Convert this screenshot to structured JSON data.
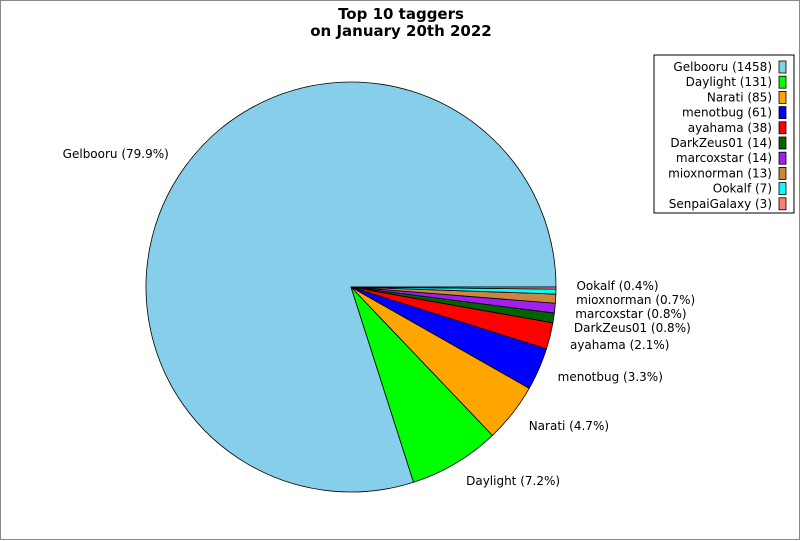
{
  "chart_data": {
    "type": "pie",
    "title": [
      "Top 10 taggers",
      "on January 20th 2022"
    ],
    "start_angle_deg": 0,
    "direction": "counterclockwise",
    "legend_position": "top-right",
    "slices": [
      {
        "name": "Gelbooru",
        "value": 1458,
        "legend": "Gelbooru (1458)",
        "label": "Gelbooru (79.9%)",
        "color": "#87CEEB"
      },
      {
        "name": "Daylight",
        "value": 131,
        "legend": "Daylight (131)",
        "label": "Daylight (7.2%)",
        "color": "#00FF00"
      },
      {
        "name": "Narati",
        "value": 85,
        "legend": "Narati (85)",
        "label": "Narati (4.7%)",
        "color": "#FFA500"
      },
      {
        "name": "menotbug",
        "value": 61,
        "legend": "menotbug (61)",
        "label": "menotbug (3.3%)",
        "color": "#0000FF"
      },
      {
        "name": "ayahama",
        "value": 38,
        "legend": "ayahama (38)",
        "label": "ayahama (2.1%)",
        "color": "#FF0000"
      },
      {
        "name": "DarkZeus01",
        "value": 14,
        "legend": "DarkZeus01 (14)",
        "label": "DarkZeus01 (0.8%)",
        "color": "#006400"
      },
      {
        "name": "marcoxstar",
        "value": 14,
        "legend": "marcoxstar (14)",
        "label": "marcoxstar (0.8%)",
        "color": "#A020F0"
      },
      {
        "name": "mioxnorman",
        "value": 13,
        "legend": "mioxnorman (13)",
        "label": "mioxnorman (0.7%)",
        "color": "#CD853F"
      },
      {
        "name": "Ookalf",
        "value": 7,
        "legend": "Ookalf (7)",
        "label": "Ookalf (0.4%)",
        "color": "#00FFFF"
      },
      {
        "name": "SenpaiGalaxy",
        "value": 3,
        "legend": "SenpaiGalaxy (3)",
        "label": "",
        "color": "#FA8072"
      }
    ]
  }
}
